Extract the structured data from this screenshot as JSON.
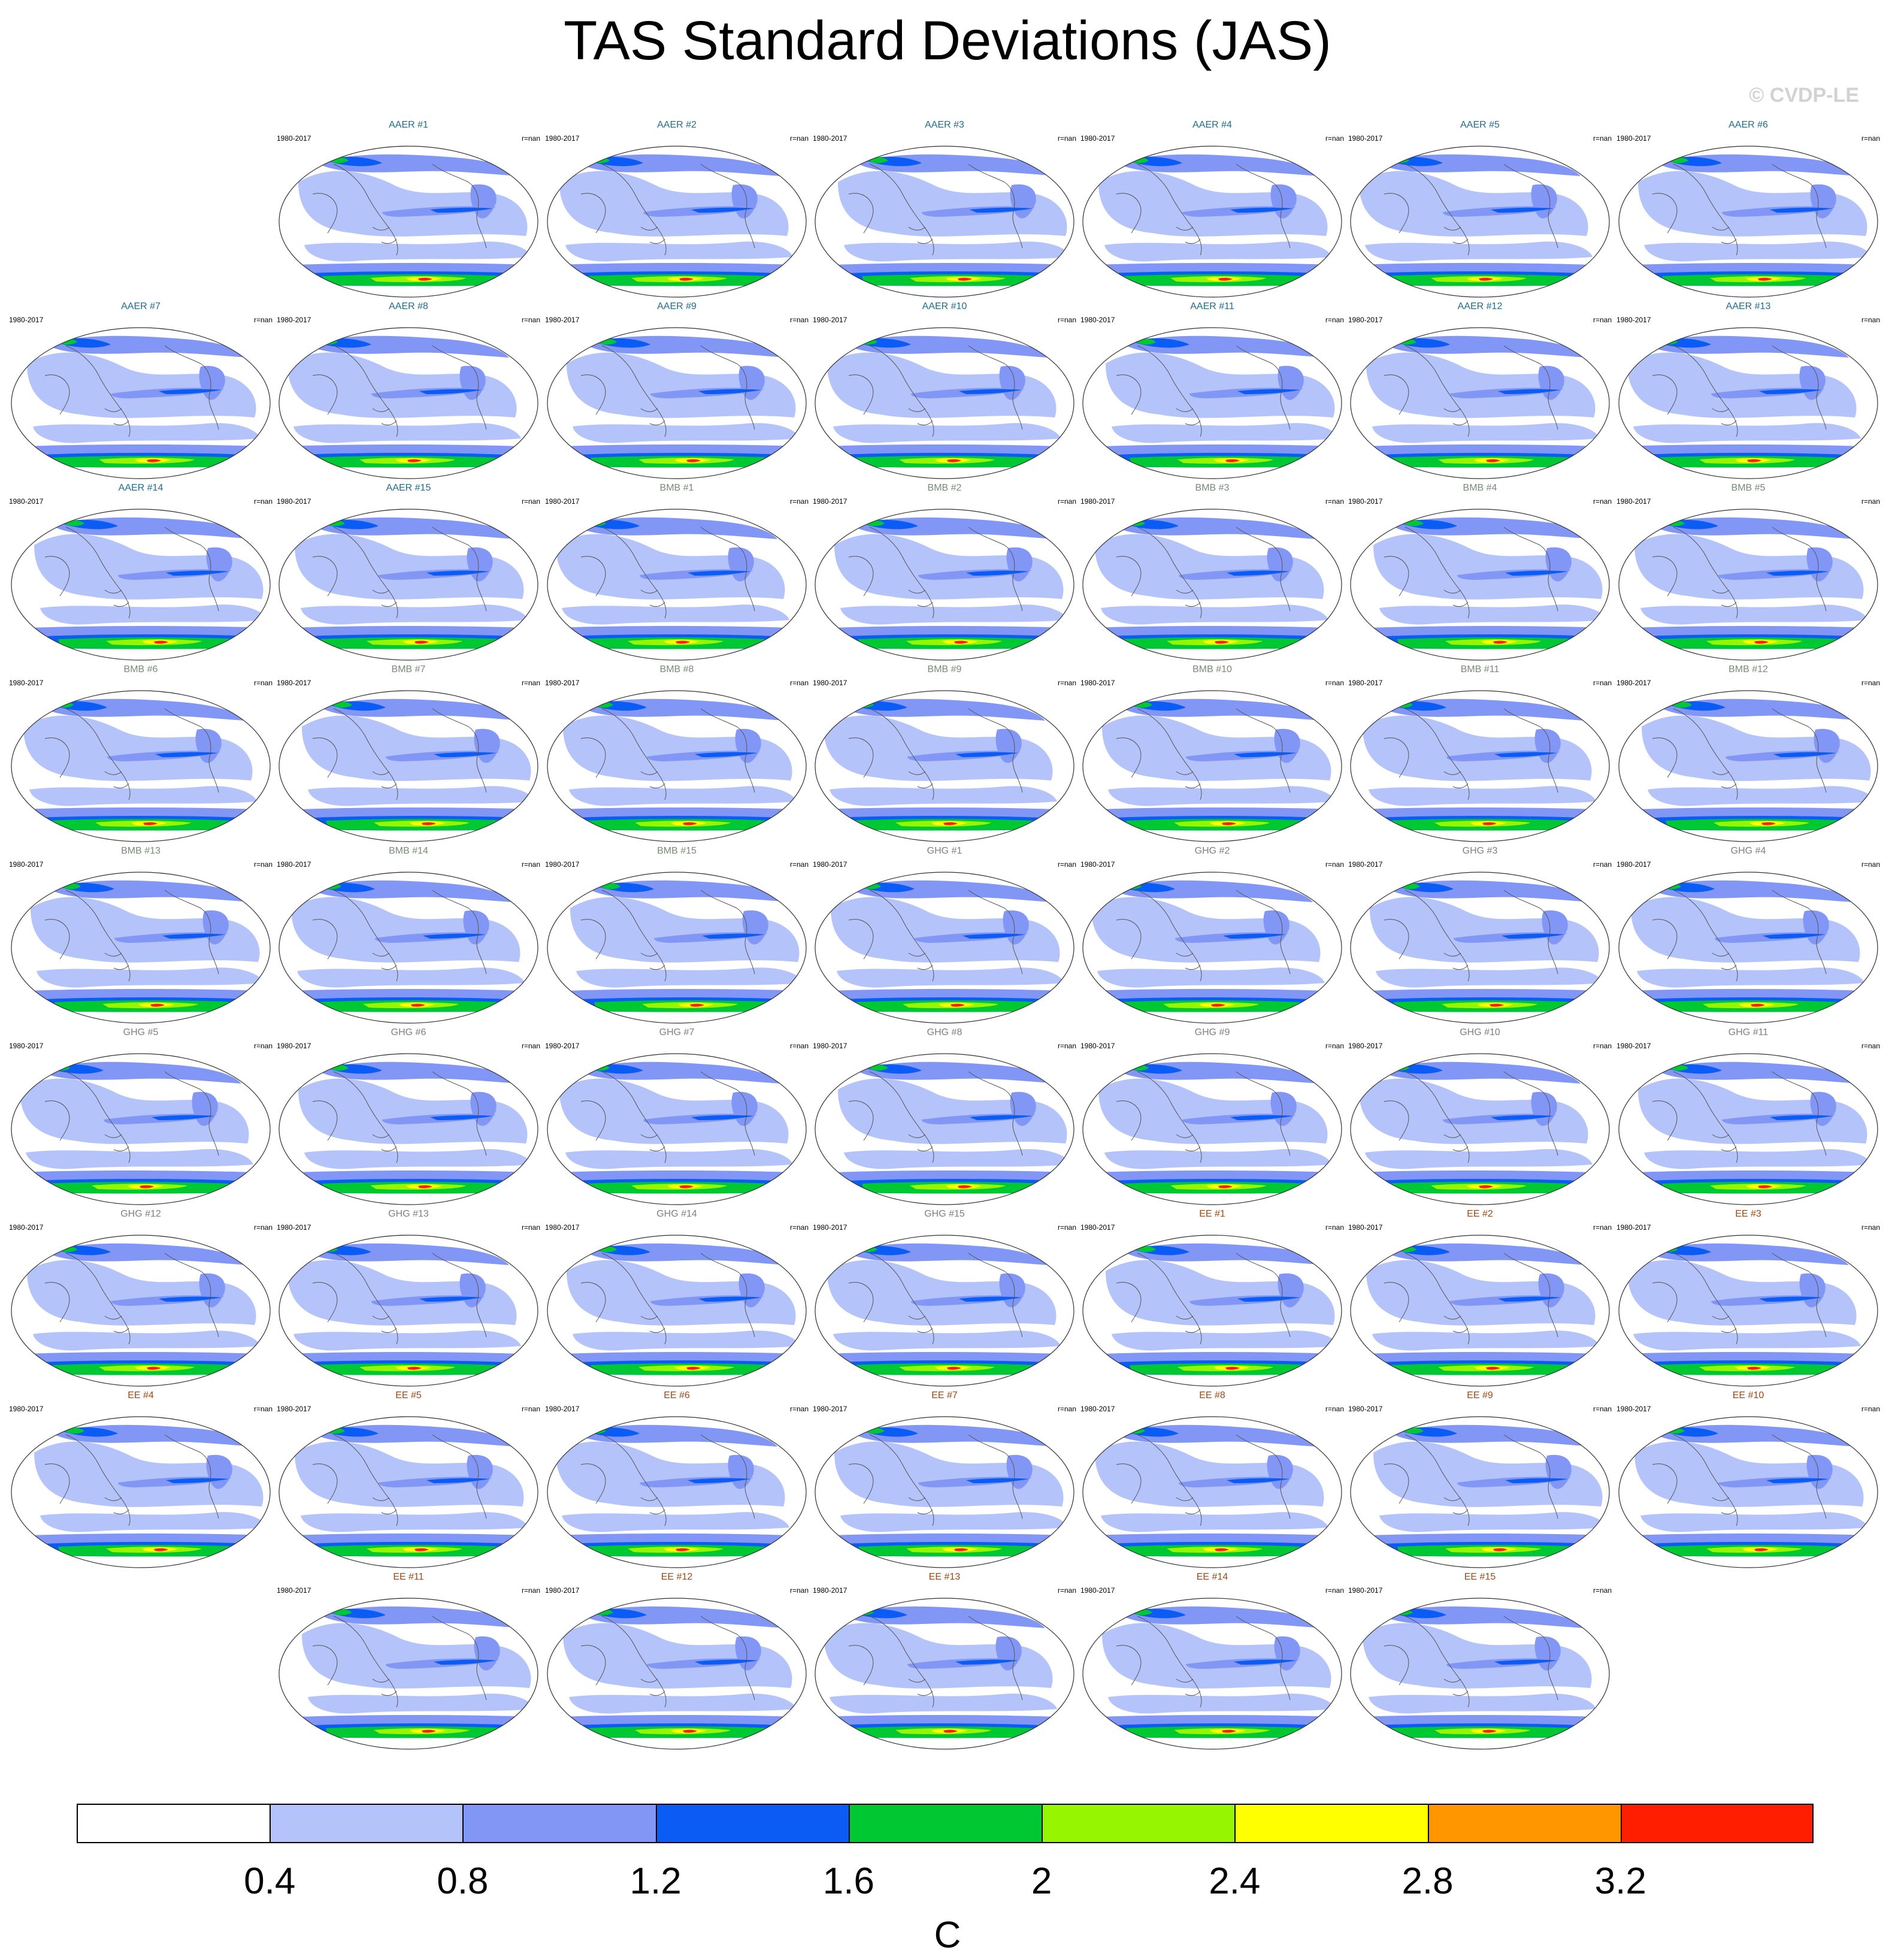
{
  "title": "TAS Standard Deviations (JAS)",
  "copyright": "© CVDP-LE",
  "panel_years": "1980-2017",
  "panel_stat": "r=nan",
  "group_colors": {
    "AAER": "#1c6e8c",
    "BMB": "#7a8a78",
    "GHG": "#7f7f7f",
    "EE": "#9c4a12"
  },
  "panel_rows": [
    [
      "",
      "AAER #1",
      "AAER #2",
      "AAER #3",
      "AAER #4",
      "AAER #5",
      "AAER #6"
    ],
    [
      "AAER #7",
      "AAER #8",
      "AAER #9",
      "AAER #10",
      "AAER #11",
      "AAER #12",
      "AAER #13"
    ],
    [
      "AAER #14",
      "AAER #15",
      "BMB #1",
      "BMB #2",
      "BMB #3",
      "BMB #4",
      "BMB #5"
    ],
    [
      "BMB #6",
      "BMB #7",
      "BMB #8",
      "BMB #9",
      "BMB #10",
      "BMB #11",
      "BMB #12"
    ],
    [
      "BMB #13",
      "BMB #14",
      "BMB #15",
      "GHG #1",
      "GHG #2",
      "GHG #3",
      "GHG #4"
    ],
    [
      "GHG #5",
      "GHG #6",
      "GHG #7",
      "GHG #8",
      "GHG #9",
      "GHG #10",
      "GHG #11"
    ],
    [
      "GHG #12",
      "GHG #13",
      "GHG #14",
      "GHG #15",
      "EE #1",
      "EE #2",
      "EE #3"
    ],
    [
      "EE #4",
      "EE #5",
      "EE #6",
      "EE #7",
      "EE #8",
      "EE #9",
      "EE #10"
    ],
    [
      "",
      "EE #11",
      "EE #12",
      "EE #13",
      "EE #14",
      "EE #15",
      ""
    ]
  ],
  "colorbar": {
    "colors": [
      "#ffffff",
      "#b4c3fa",
      "#8296f5",
      "#0a5cf5",
      "#00c832",
      "#96f500",
      "#ffff00",
      "#ff9600",
      "#ff1e00"
    ],
    "ticks": [
      "0.4",
      "0.8",
      "1.2",
      "1.6",
      "2",
      "2.4",
      "2.8",
      "3.2"
    ],
    "unit": "C"
  }
}
